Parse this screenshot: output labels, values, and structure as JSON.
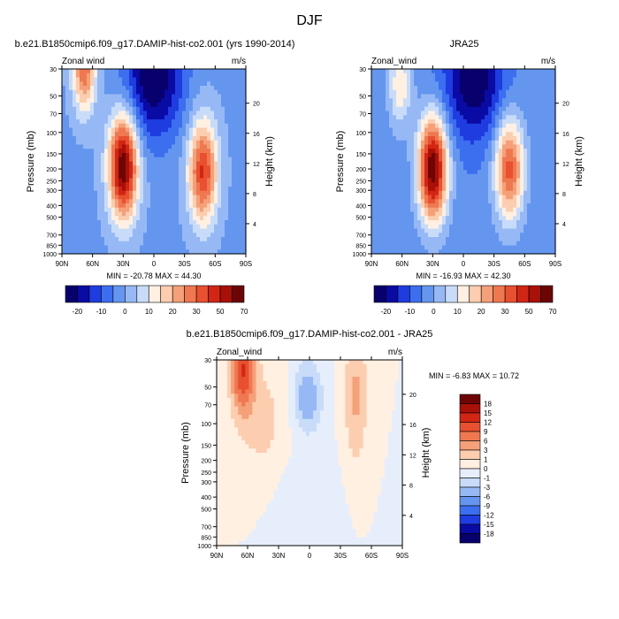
{
  "figure_title": "DJF",
  "colors": {
    "panel_scale": [
      "#08006c",
      "#0a0aa5",
      "#1e3ce0",
      "#3c6ef0",
      "#6496f0",
      "#96b9f5",
      "#c8dcfa",
      "#fff0e1",
      "#fccdaf",
      "#f5a078",
      "#f07850",
      "#e85030",
      "#d22514",
      "#a81008",
      "#6e0505"
    ],
    "diff_scale": [
      "#08006c",
      "#0a0aa5",
      "#1e3ce0",
      "#3c6ef0",
      "#6496f0",
      "#96b9f5",
      "#c8dcfa",
      "#e6eefc",
      "#fff0e1",
      "#fccdaf",
      "#f5a078",
      "#f07850",
      "#e85030",
      "#d22514",
      "#a81008",
      "#6e0505"
    ]
  },
  "chart_data": [
    {
      "type": "heatmap",
      "subtitle": "b.e21.B1850cmip6.f09_g17.DAMIP-hist-co2.001 (yrs 1990-2014)",
      "left_label": "Zonal wind",
      "right_label": "m/s",
      "ylabel": "Pressure (mb)",
      "ylabel_right": "Height (km)",
      "x_ticks": [
        "90N",
        "60N",
        "30N",
        "0",
        "30S",
        "60S",
        "90S"
      ],
      "xlim": [
        90,
        -90
      ],
      "y_ticks": [
        30,
        50,
        70,
        100,
        150,
        200,
        250,
        300,
        400,
        500,
        700,
        850,
        1000
      ],
      "ylim": [
        1000,
        30
      ],
      "y_scale": "log",
      "height_ticks": [
        4,
        8,
        12,
        16,
        20
      ],
      "stats": "MIN = -20.78  MAX =  44.30",
      "min": -20.78,
      "max": 44.3,
      "colorbar_orientation": "horizontal",
      "colorbar_labels": [
        "-20",
        "-10",
        "0",
        "10",
        "20",
        "30",
        "50",
        "70"
      ],
      "features": [
        {
          "lat": 30,
          "p": 190,
          "value": 44,
          "spread_lat": 10,
          "spread_logp": 0.3
        },
        {
          "lat": -48,
          "p": 210,
          "value": 32,
          "spread_lat": 10,
          "spread_logp": 0.3
        },
        {
          "lat": 68,
          "p": 30,
          "value": 26,
          "spread_lat": 8,
          "spread_logp": 0.25
        },
        {
          "lat": 0,
          "p": 35,
          "value": -21,
          "spread_lat": 20,
          "spread_logp": 0.35
        }
      ]
    },
    {
      "type": "heatmap",
      "subtitle": "JRA25",
      "left_label": "Zonal_wind",
      "right_label": "m/s",
      "ylabel": "Pressure (mb)",
      "ylabel_right": "Height (km)",
      "x_ticks": [
        "90N",
        "60N",
        "30N",
        "0",
        "30S",
        "60S",
        "90S"
      ],
      "xlim": [
        90,
        -90
      ],
      "y_ticks": [
        30,
        50,
        70,
        100,
        150,
        200,
        250,
        300,
        400,
        500,
        700,
        850,
        1000
      ],
      "ylim": [
        1000,
        30
      ],
      "y_scale": "log",
      "height_ticks": [
        4,
        8,
        12,
        16,
        20
      ],
      "stats": "MIN = -16.93  MAX =  42.30",
      "min": -16.93,
      "max": 42.3,
      "colorbar_orientation": "horizontal",
      "colorbar_labels": [
        "-20",
        "-10",
        "0",
        "10",
        "20",
        "30",
        "50",
        "70"
      ],
      "features": [
        {
          "lat": 30,
          "p": 200,
          "value": 42,
          "spread_lat": 10,
          "spread_logp": 0.3
        },
        {
          "lat": -45,
          "p": 200,
          "value": 28,
          "spread_lat": 10,
          "spread_logp": 0.3
        },
        {
          "lat": 62,
          "p": 40,
          "value": 14,
          "spread_lat": 8,
          "spread_logp": 0.25
        },
        {
          "lat": -10,
          "p": 35,
          "value": -17,
          "spread_lat": 20,
          "spread_logp": 0.35
        }
      ]
    },
    {
      "type": "heatmap",
      "subtitle": "b.e21.B1850cmip6.f09_g17.DAMIP-hist-co2.001 - JRA25",
      "left_label": "Zonal_wind",
      "right_label": "m/s",
      "ylabel": "Pressure (mb)",
      "ylabel_right": "Height (km)",
      "x_ticks": [
        "90N",
        "60N",
        "30N",
        "0",
        "30S",
        "60S",
        "90S"
      ],
      "xlim": [
        90,
        -90
      ],
      "y_ticks": [
        30,
        50,
        70,
        100,
        150,
        200,
        250,
        300,
        400,
        500,
        700,
        850,
        1000
      ],
      "ylim": [
        1000,
        30
      ],
      "y_scale": "log",
      "height_ticks": [
        4,
        8,
        12,
        16,
        20
      ],
      "stats": "MIN =  -6.83  MAX =  10.72",
      "min": -6.83,
      "max": 10.72,
      "colorbar_orientation": "vertical",
      "colorbar_labels": [
        "18",
        "15",
        "12",
        "9",
        "6",
        "3",
        "1",
        "0",
        "-1",
        "-3",
        "-6",
        "-9",
        "-12",
        "-15",
        "-18"
      ],
      "features": [
        {
          "lat": 65,
          "p": 35,
          "value": 10.7,
          "spread_lat": 8,
          "spread_logp": 0.25
        },
        {
          "lat": -45,
          "p": 60,
          "value": 5,
          "spread_lat": 8,
          "spread_logp": 0.4
        },
        {
          "lat": 2,
          "p": 60,
          "value": -6.8,
          "spread_lat": 10,
          "spread_logp": 0.2
        },
        {
          "lat": 45,
          "p": 100,
          "value": 3,
          "spread_lat": 18,
          "spread_logp": 0.4
        },
        {
          "lat": 10,
          "p": 450,
          "value": -1.5,
          "spread_lat": 25,
          "spread_logp": 0.35
        }
      ]
    }
  ]
}
